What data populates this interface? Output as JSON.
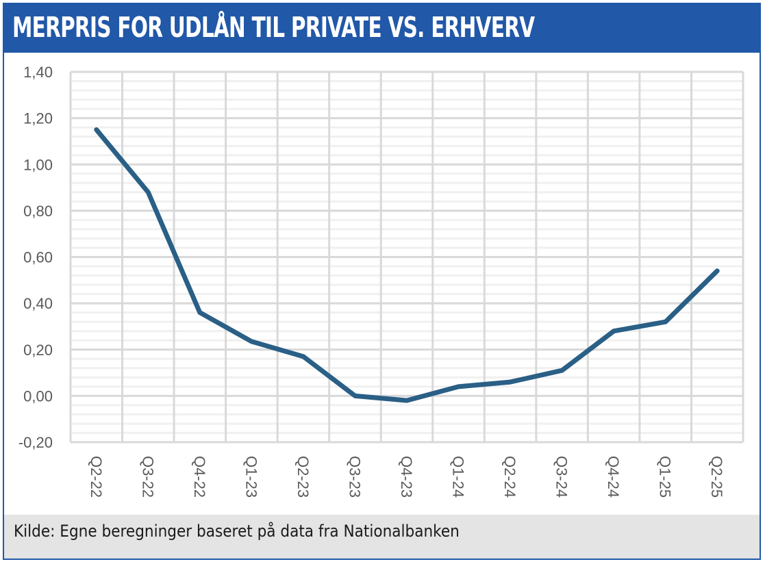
{
  "header": {
    "title": "MERPRIS FOR UDLÅN TIL PRIVATE VS. ERHVERV"
  },
  "footer": {
    "source": "Kilde:  Egne beregninger baseret på data fra Nationalbanken"
  },
  "colors": {
    "brand": "#2158a8",
    "line": "#2a5f86",
    "grid_major": "#d9d9d9",
    "grid_minor": "#f0f0f0",
    "footer_bg": "#e4e4e4"
  },
  "chart_data": {
    "type": "line",
    "title": "MERPRIS FOR UDLÅN TIL PRIVATE VS. ERHVERV",
    "xlabel": "",
    "ylabel": "",
    "categories": [
      "Q2-22",
      "Q3-22",
      "Q4-22",
      "Q1-23",
      "Q2-23",
      "Q3-23",
      "Q4-23",
      "Q1-24",
      "Q2-24",
      "Q3-24",
      "Q4-24",
      "Q1-25",
      "Q2-25"
    ],
    "series": [
      {
        "name": "Merpris",
        "values": [
          1.15,
          0.88,
          0.36,
          0.235,
          0.17,
          0.0,
          -0.02,
          0.04,
          0.06,
          0.11,
          0.28,
          0.32,
          0.54
        ]
      }
    ],
    "ylim": [
      -0.2,
      1.4
    ],
    "yticks": [
      -0.2,
      0.0,
      0.2,
      0.4,
      0.6,
      0.8,
      1.0,
      1.2,
      1.4
    ],
    "ytick_labels": [
      "-0,20",
      "0,00",
      "0,20",
      "0,40",
      "0,60",
      "0,80",
      "1,00",
      "1,20",
      "1,40"
    ],
    "minor_ystep": 0.04,
    "grid": true,
    "legend": "none",
    "x_label_rotation": "vertical"
  }
}
